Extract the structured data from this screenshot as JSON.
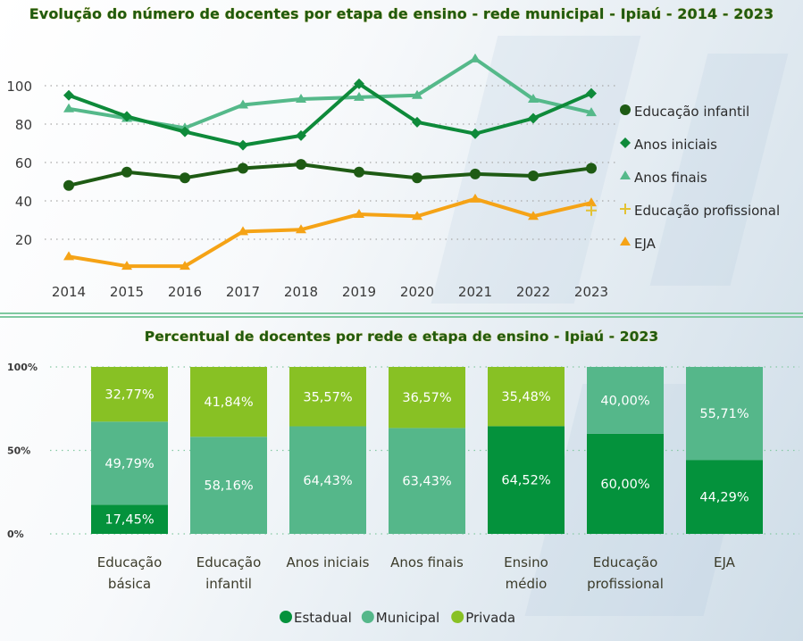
{
  "chart_data": [
    {
      "type": "line",
      "title": "Evolução do número de docentes por etapa de ensino - rede municipal - Ipiaú - 2014 - 2023",
      "xlabel": "",
      "ylabel": "",
      "x": [
        "2014",
        "2015",
        "2016",
        "2017",
        "2018",
        "2019",
        "2020",
        "2021",
        "2022",
        "2023"
      ],
      "yticks": [
        "20",
        "40",
        "60",
        "80",
        "100"
      ],
      "ylim": [
        0,
        120
      ],
      "grid": true,
      "legend_position": "right",
      "series": [
        {
          "name": "Educação infantil",
          "marker": "circle",
          "color": "#1e5b14",
          "values": [
            48,
            55,
            52,
            57,
            59,
            55,
            52,
            54,
            53,
            57
          ]
        },
        {
          "name": "Anos iniciais",
          "marker": "diamond",
          "color": "#0e8a3a",
          "values": [
            95,
            84,
            76,
            69,
            74,
            101,
            81,
            75,
            83,
            96
          ]
        },
        {
          "name": "Anos finais",
          "marker": "triangle",
          "color": "#55b98a",
          "values": [
            88,
            83,
            78,
            90,
            93,
            94,
            95,
            114,
            93,
            86
          ]
        },
        {
          "name": "Educação profissional",
          "marker": "plus",
          "color": "#e3c233",
          "values": [
            null,
            null,
            null,
            null,
            null,
            null,
            null,
            null,
            null,
            35
          ]
        },
        {
          "name": "EJA",
          "marker": "triangle",
          "color": "#f5a316",
          "values": [
            11,
            6,
            6,
            24,
            25,
            33,
            32,
            41,
            32,
            39
          ]
        }
      ]
    },
    {
      "type": "bar",
      "stacked": "percent",
      "title": "Percentual de docentes por rede e etapa de ensino - Ipiaú - 2023",
      "xlabel": "",
      "ylabel": "",
      "categories": [
        [
          "Educação",
          "básica"
        ],
        [
          "Educação",
          "infantil"
        ],
        [
          "Anos iniciais"
        ],
        [
          "Anos finais"
        ],
        [
          "Ensino",
          "médio"
        ],
        [
          "Educação",
          "profissional"
        ],
        [
          "EJA"
        ]
      ],
      "yticks": [
        "0%",
        "50%",
        "100%"
      ],
      "ylim": [
        0,
        100
      ],
      "grid": true,
      "legend_position": "bottom",
      "series": [
        {
          "name": "Estadual",
          "color": "#04923c",
          "values": [
            17.45,
            0,
            0,
            0,
            64.52,
            60.0,
            44.29
          ],
          "labels": [
            "17,45%",
            "",
            "",
            "",
            "64,52%",
            "60,00%",
            "44,29%"
          ]
        },
        {
          "name": "Municipal",
          "color": "#55b78a",
          "values": [
            49.79,
            58.16,
            64.43,
            63.43,
            0,
            40.0,
            55.71
          ],
          "labels": [
            "49,79%",
            "58,16%",
            "64,43%",
            "63,43%",
            "",
            "40,00%",
            "55,71%"
          ]
        },
        {
          "name": "Privada",
          "color": "#88c124",
          "values": [
            32.77,
            41.84,
            35.57,
            36.57,
            35.48,
            0,
            0
          ],
          "labels": [
            "32,77%",
            "41,84%",
            "35,57%",
            "36,57%",
            "35,48%",
            "",
            ""
          ]
        }
      ]
    }
  ]
}
